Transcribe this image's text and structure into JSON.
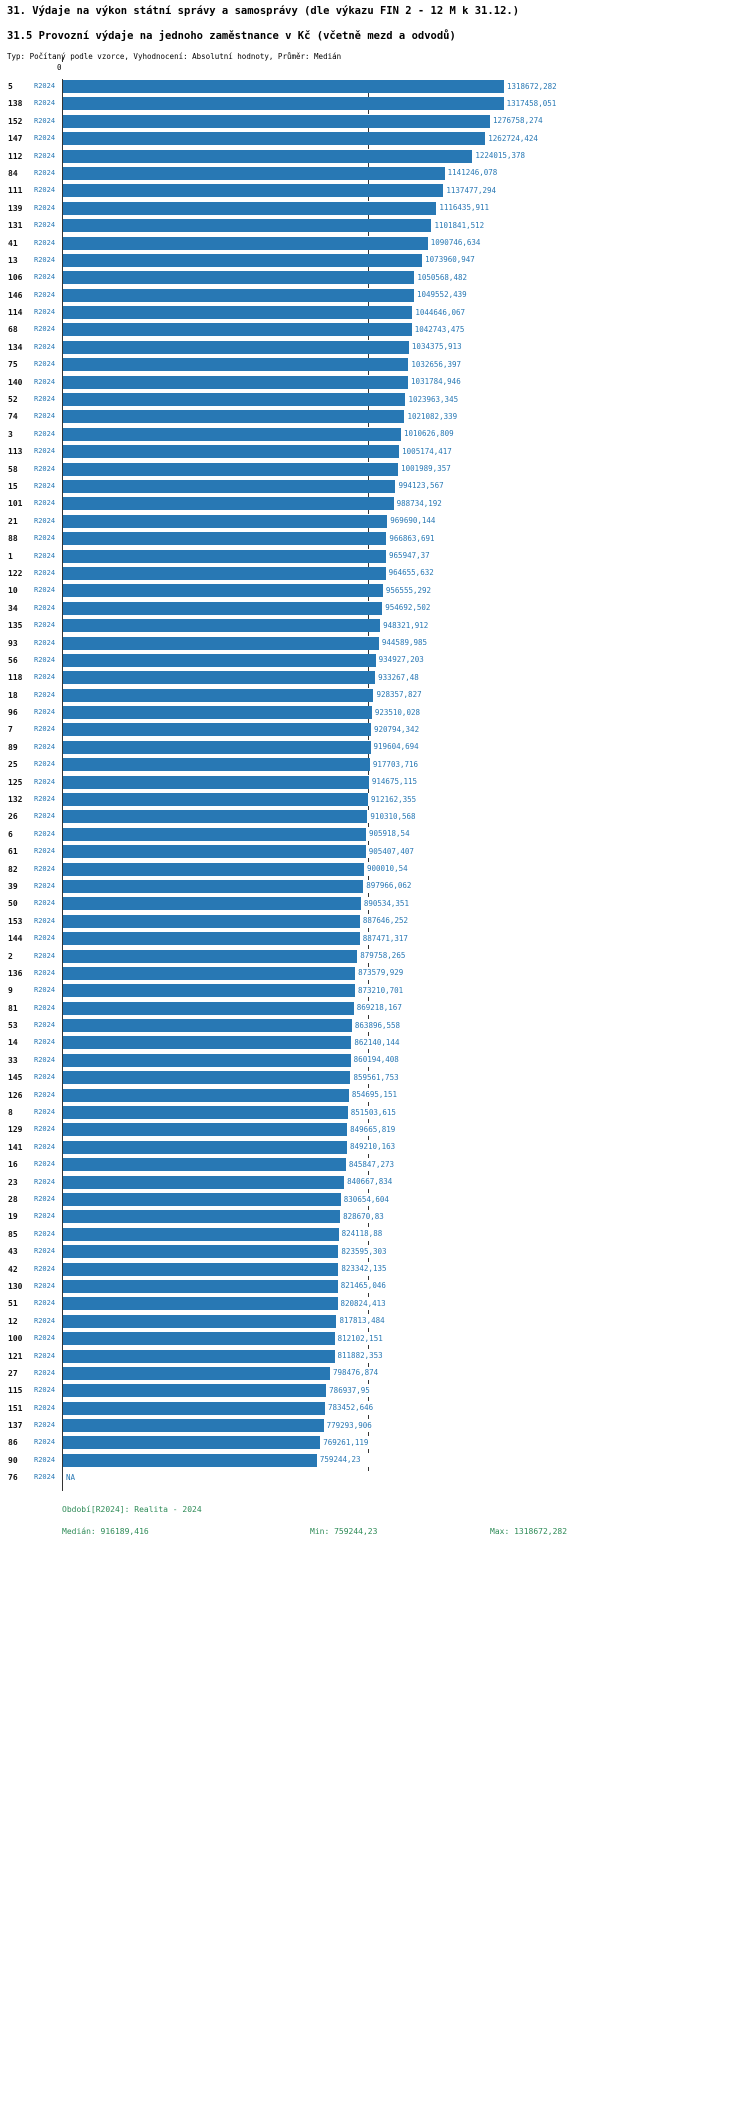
{
  "header": {
    "title_line1": "31. Výdaje na výkon státní správy a samosprávy (dle výkazu FIN 2 - 12 M k 31.12.)",
    "title_line2": "31.5 Provozní výdaje na jednoho zaměstnance v Kč (včetně mezd a odvodů)",
    "meta": "Typ: Počítaný podle vzorce, Vyhodnocení: Absolutní hodnoty, Průměr: Medián"
  },
  "axis": {
    "origin_label": "0"
  },
  "footer": {
    "period": "Období[R2024]: Realita - 2024",
    "median_label": "Medián: 916189,416",
    "min_label": "Min: 759244,23",
    "max_label": "Max: 1318672,282"
  },
  "colors": {
    "bar": "#2878b4",
    "value_text": "#2878b4",
    "series_text": "#2878b4",
    "row_id_text": "#111111",
    "footer_text": "#2e8b57",
    "median_tick": "#333333",
    "axis": "#333333"
  },
  "chart_data": {
    "type": "bar",
    "orientation": "horizontal",
    "title": "31.5 Provozní výdaje na jednoho zaměstnance v Kč (včetně mezd a odvodů)",
    "series_name": "R2024",
    "xlabel": "",
    "ylabel": "",
    "xlim": [
      0,
      1318672.282
    ],
    "grid": false,
    "legend_position": "none",
    "x_axis_ticks": [
      "0"
    ],
    "median": 916189.416,
    "min": 759244.23,
    "max": 1318672.282,
    "na_label": "NA",
    "categories": [
      "5",
      "138",
      "152",
      "147",
      "112",
      "84",
      "111",
      "139",
      "131",
      "41",
      "13",
      "106",
      "146",
      "114",
      "68",
      "134",
      "75",
      "140",
      "52",
      "74",
      "3",
      "113",
      "58",
      "15",
      "101",
      "21",
      "88",
      "1",
      "122",
      "10",
      "34",
      "135",
      "93",
      "56",
      "118",
      "18",
      "96",
      "7",
      "89",
      "25",
      "125",
      "132",
      "26",
      "6",
      "61",
      "82",
      "39",
      "50",
      "153",
      "144",
      "2",
      "136",
      "9",
      "81",
      "53",
      "14",
      "33",
      "145",
      "126",
      "8",
      "129",
      "141",
      "16",
      "23",
      "28",
      "19",
      "85",
      "43",
      "42",
      "130",
      "51",
      "12",
      "100",
      "121",
      "27",
      "115",
      "151",
      "137",
      "86",
      "90",
      "76"
    ],
    "value_labels": [
      "1318672,282",
      "1317458,051",
      "1276758,274",
      "1262724,424",
      "1224015,378",
      "1141246,078",
      "1137477,294",
      "1116435,911",
      "1101841,512",
      "1090746,634",
      "1073960,947",
      "1050568,482",
      "1049552,439",
      "1044646,067",
      "1042743,475",
      "1034375,913",
      "1032656,397",
      "1031784,946",
      "1023963,345",
      "1021082,339",
      "1010626,809",
      "1005174,417",
      "1001989,357",
      "994123,567",
      "988734,192",
      "969690,144",
      "966863,691",
      "965947,37",
      "964655,632",
      "956555,292",
      "954692,502",
      "948321,912",
      "944589,985",
      "934927,203",
      "933267,48",
      "928357,827",
      "923510,028",
      "920794,342",
      "919604,694",
      "917703,716",
      "914675,115",
      "912162,355",
      "910310,568",
      "905918,54",
      "905407,407",
      "900010,54",
      "897966,062",
      "890534,351",
      "887646,252",
      "887471,317",
      "879758,265",
      "873579,929",
      "873210,701",
      "869218,167",
      "863896,558",
      "862140,144",
      "860194,408",
      "859561,753",
      "854695,151",
      "851503,615",
      "849665,819",
      "849210,163",
      "845847,273",
      "840667,834",
      "830654,604",
      "828670,83",
      "824118,88",
      "823595,303",
      "823342,135",
      "821465,046",
      "820824,413",
      "817813,484",
      "812102,151",
      "811882,353",
      "798476,874",
      "786937,95",
      "783452,646",
      "779293,906",
      "769261,119",
      "759244,23",
      "NA"
    ],
    "values": [
      1318672.282,
      1317458.051,
      1276758.274,
      1262724.424,
      1224015.378,
      1141246.078,
      1137477.294,
      1116435.911,
      1101841.512,
      1090746.634,
      1073960.947,
      1050568.482,
      1049552.439,
      1044646.067,
      1042743.475,
      1034375.913,
      1032656.397,
      1031784.946,
      1023963.345,
      1021082.339,
      1010626.809,
      1005174.417,
      1001989.357,
      994123.567,
      988734.192,
      969690.144,
      966863.691,
      965947.37,
      964655.632,
      956555.292,
      954692.502,
      948321.912,
      944589.985,
      934927.203,
      933267.48,
      928357.827,
      923510.028,
      920794.342,
      919604.694,
      917703.716,
      914675.115,
      912162.355,
      910310.568,
      905918.54,
      905407.407,
      900010.54,
      897966.062,
      890534.351,
      887646.252,
      887471.317,
      879758.265,
      873579.929,
      873210.701,
      869218.167,
      863896.558,
      862140.144,
      860194.408,
      859561.753,
      854695.151,
      851503.615,
      849665.819,
      849210.163,
      845847.273,
      840667.834,
      830654.604,
      828670.83,
      824118.88,
      823595.303,
      823342.135,
      821465.046,
      820824.413,
      817813.484,
      812102.151,
      811882.353,
      798476.874,
      786937.95,
      783452.646,
      779293.906,
      769261.119,
      759244.23,
      null
    ]
  }
}
